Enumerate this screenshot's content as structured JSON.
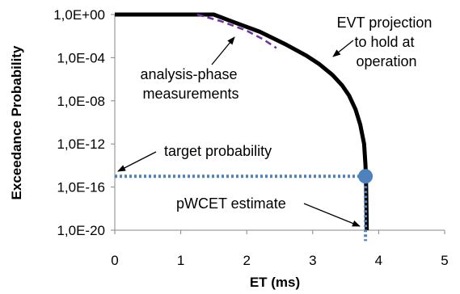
{
  "chart_data": {
    "type": "line",
    "xlabel": "ET (ms)",
    "ylabel": "Exceedance Probability",
    "x_ticks": [
      "0",
      "1",
      "2",
      "3",
      "4",
      "5"
    ],
    "y_ticks": [
      "1,0E+00",
      "1,0E-04",
      "1,0E-08",
      "1,0E-12",
      "1,0E-16",
      "1,0E-20"
    ],
    "xlim": [
      0,
      5
    ],
    "ylim_log10": [
      -20,
      0
    ],
    "y_scale": "log",
    "grid": false,
    "series": [
      {
        "role": "evt-projection",
        "color": "#000000",
        "style": "solid",
        "x": [
          0,
          1.5,
          1.8,
          2.2,
          2.6,
          2.9,
          3.1,
          3.3,
          3.45,
          3.55,
          3.65,
          3.72,
          3.78,
          3.8,
          3.81,
          3.82
        ],
        "log10_y": [
          0,
          0,
          -0.7,
          -1.6,
          -2.8,
          -3.8,
          -4.6,
          -5.6,
          -6.6,
          -7.5,
          -8.8,
          -10.2,
          -12,
          -14,
          -16,
          -20
        ]
      },
      {
        "role": "analysis-phase-measurements",
        "color": "#7030a0",
        "style": "dashed",
        "x": [
          1.25,
          1.6,
          2.0,
          2.25,
          2.45
        ],
        "log10_y": [
          0,
          -0.6,
          -1.5,
          -2.3,
          -3.1
        ]
      },
      {
        "role": "target-probability",
        "color": "#4f81bd",
        "style": "dotted",
        "x": [
          0,
          3.8
        ],
        "log10_y": [
          -15,
          -15
        ]
      },
      {
        "role": "pwcet-estimate",
        "color": "#4f81bd",
        "style": "dotted",
        "x": [
          3.8,
          3.8
        ],
        "log10_y": [
          -15,
          -21
        ]
      }
    ],
    "highlight_point": {
      "x": 3.8,
      "log10_y": -15,
      "color": "#4f81bd"
    },
    "annotations": [
      {
        "id": "evt",
        "lines": [
          "EVT projection",
          "to hold at",
          "operation"
        ]
      },
      {
        "id": "analysis",
        "lines": [
          "analysis-phase",
          "measurements"
        ]
      },
      {
        "id": "target",
        "lines": [
          "target probability"
        ]
      },
      {
        "id": "pwcet",
        "lines": [
          "pWCET estimate"
        ]
      }
    ]
  }
}
